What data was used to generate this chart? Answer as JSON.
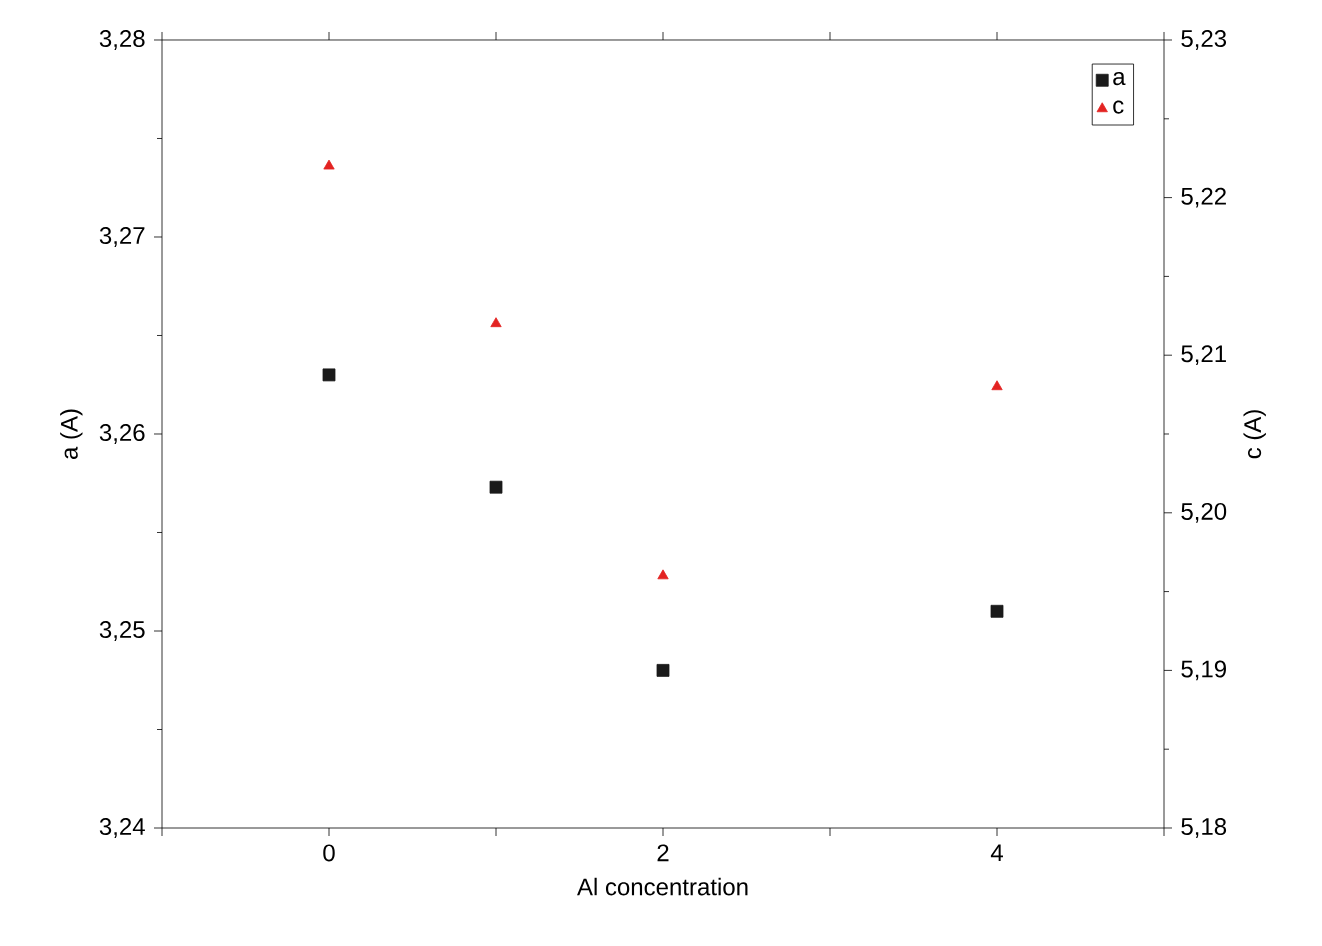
{
  "chart_data": {
    "type": "scatter",
    "xlabel": "Al concentration",
    "ylabel": "a (A)",
    "y2label": "c (A)",
    "x": [
      0,
      1,
      2,
      4
    ],
    "series": [
      {
        "name": "a",
        "color": "#1a1a1a",
        "marker": "square",
        "values": [
          3.263,
          3.2573,
          3.248,
          3.251
        ]
      },
      {
        "name": "c",
        "color": "#e32322",
        "marker": "triangle",
        "axis": "y2",
        "values": [
          5.222,
          5.212,
          5.196,
          5.208
        ]
      }
    ],
    "xlim": [
      -1,
      5
    ],
    "xticks": [
      {
        "value": -1,
        "label": null
      },
      0,
      {
        "value": 1,
        "label": null
      },
      2,
      {
        "value": 3,
        "label": null
      },
      4,
      {
        "value": 5,
        "label": null
      }
    ],
    "ylim": [
      3.24,
      3.28
    ],
    "yticks": [
      {
        "value": 3.24,
        "label": "3,24"
      },
      {
        "value": 3.25,
        "label": "3,25"
      },
      {
        "value": 3.26,
        "label": "3,26"
      },
      {
        "value": 3.27,
        "label": "3,27"
      },
      {
        "value": 3.28,
        "label": "3,28"
      }
    ],
    "y2lim": [
      5.18,
      5.23
    ],
    "y2ticks": [
      {
        "value": 5.18,
        "label": "5,18"
      },
      {
        "value": 5.19,
        "label": "5,19"
      },
      {
        "value": 5.2,
        "label": "5,20"
      },
      {
        "value": 5.21,
        "label": "5,21"
      },
      {
        "value": 5.22,
        "label": "5,22"
      },
      {
        "value": 5.23,
        "label": "5,23"
      }
    ],
    "legend": "top right",
    "grid": false
  }
}
